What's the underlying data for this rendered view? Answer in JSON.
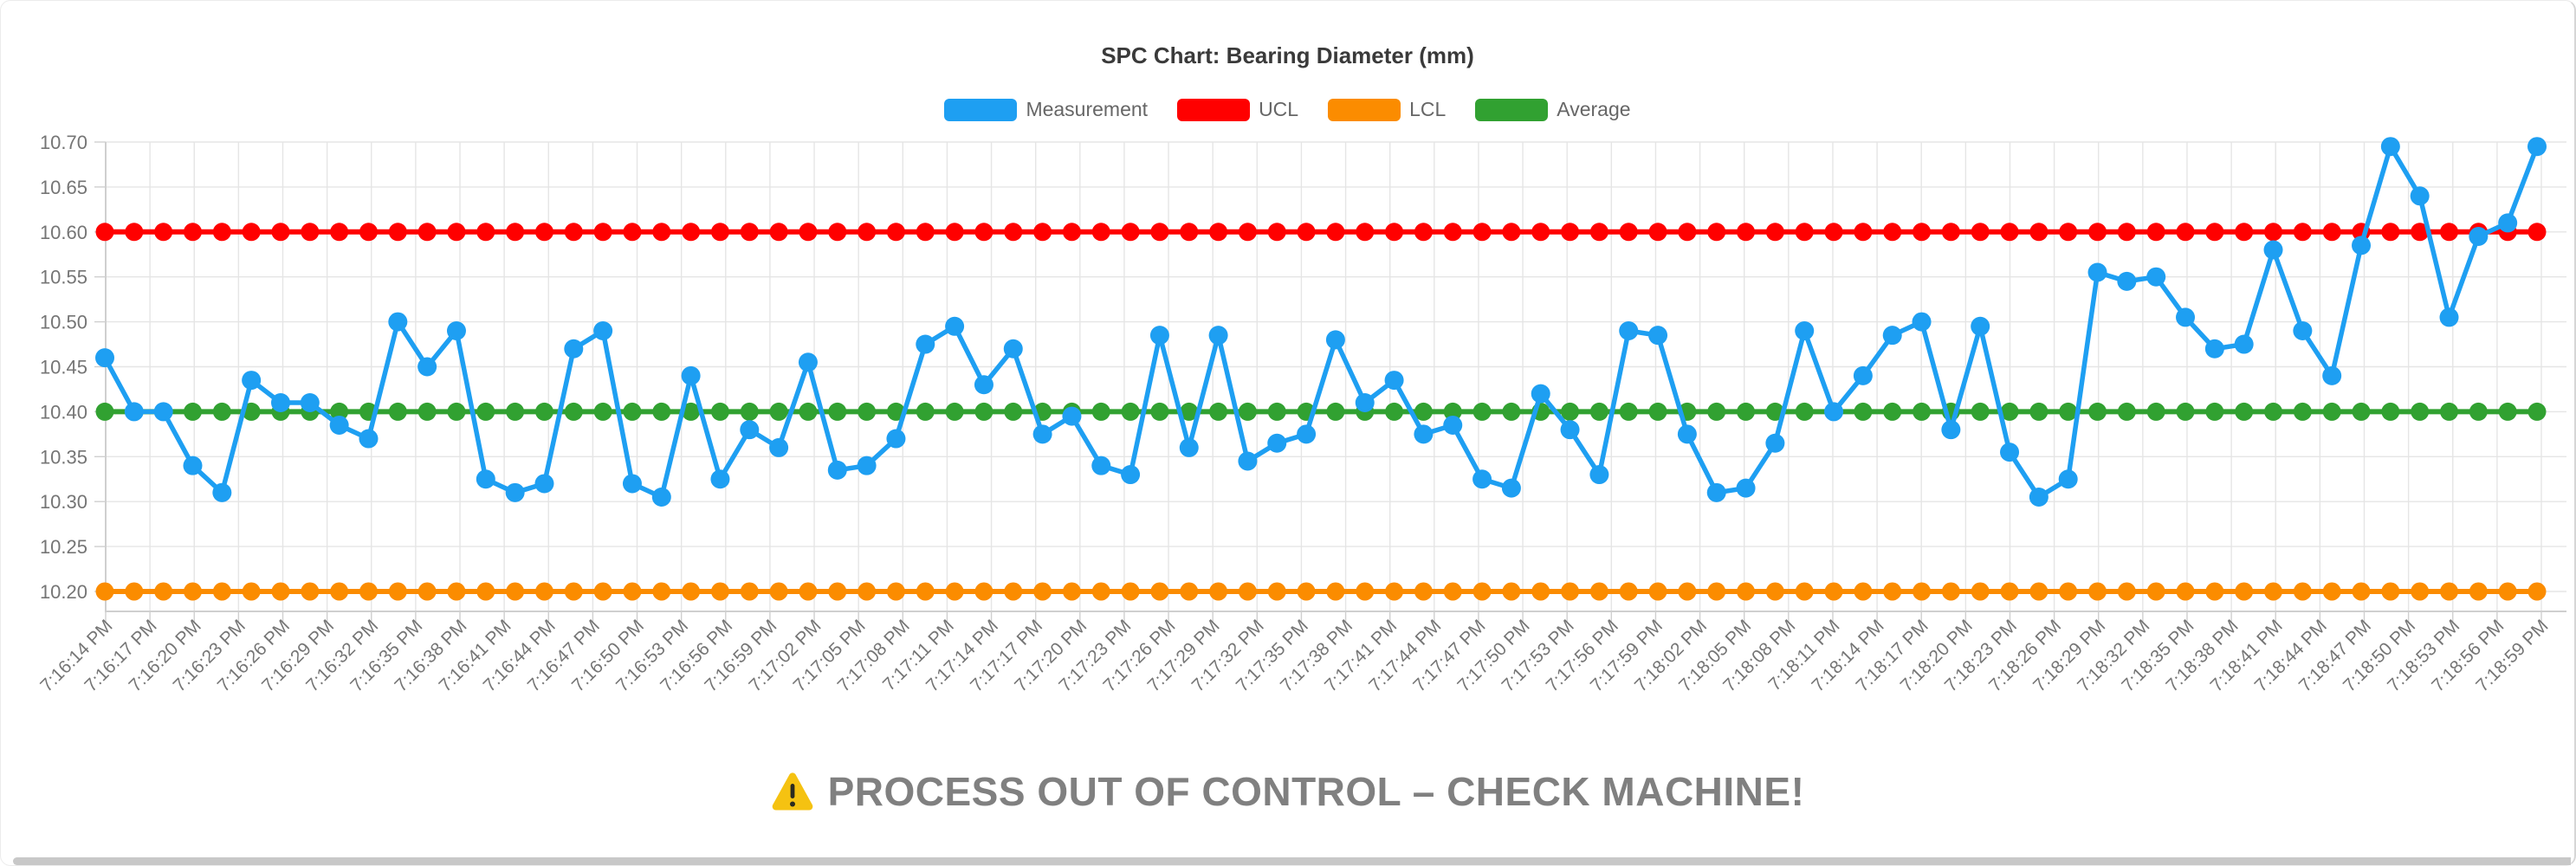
{
  "chart_data": {
    "type": "line",
    "title": "SPC Chart: Bearing Diameter (mm)",
    "legend_position": "top",
    "grid": true,
    "ylim": [
      10.2,
      10.7
    ],
    "y_step": 0.05,
    "y_tick_labels": [
      "10.20",
      "10.25",
      "10.30",
      "10.35",
      "10.40",
      "10.45",
      "10.50",
      "10.55",
      "10.60",
      "10.65",
      "10.70"
    ],
    "x_tick_labels": [
      "7:16:14 PM",
      "7:16:17 PM",
      "7:16:20 PM",
      "7:16:23 PM",
      "7:16:26 PM",
      "7:16:29 PM",
      "7:16:32 PM",
      "7:16:35 PM",
      "7:16:38 PM",
      "7:16:41 PM",
      "7:16:44 PM",
      "7:16:47 PM",
      "7:16:50 PM",
      "7:16:53 PM",
      "7:16:56 PM",
      "7:16:59 PM",
      "7:17:02 PM",
      "7:17:05 PM",
      "7:17:08 PM",
      "7:17:11 PM",
      "7:17:14 PM",
      "7:17:17 PM",
      "7:17:20 PM",
      "7:17:23 PM",
      "7:17:26 PM",
      "7:17:29 PM",
      "7:17:32 PM",
      "7:17:35 PM",
      "7:17:38 PM",
      "7:17:41 PM",
      "7:17:44 PM",
      "7:17:47 PM",
      "7:17:50 PM",
      "7:17:53 PM",
      "7:17:56 PM",
      "7:17:59 PM",
      "7:18:02 PM",
      "7:18:05 PM",
      "7:18:08 PM",
      "7:18:11 PM",
      "7:18:14 PM",
      "7:18:17 PM",
      "7:18:20 PM",
      "7:18:23 PM",
      "7:18:26 PM",
      "7:18:29 PM",
      "7:18:32 PM",
      "7:18:35 PM",
      "7:18:38 PM",
      "7:18:41 PM",
      "7:18:44 PM",
      "7:18:47 PM",
      "7:18:50 PM",
      "7:18:53 PM",
      "7:18:56 PM",
      "7:18:59 PM"
    ],
    "series": [
      {
        "name": "Measurement",
        "color": "#1e9ff2",
        "values": [
          10.46,
          10.4,
          10.4,
          10.34,
          10.31,
          10.435,
          10.41,
          10.41,
          10.385,
          10.37,
          10.5,
          10.45,
          10.49,
          10.325,
          10.31,
          10.32,
          10.47,
          10.49,
          10.32,
          10.305,
          10.44,
          10.325,
          10.38,
          10.36,
          10.455,
          10.335,
          10.34,
          10.37,
          10.475,
          10.495,
          10.43,
          10.47,
          10.375,
          10.395,
          10.34,
          10.33,
          10.485,
          10.36,
          10.485,
          10.345,
          10.365,
          10.375,
          10.48,
          10.41,
          10.435,
          10.375,
          10.385,
          10.325,
          10.315,
          10.42,
          10.38,
          10.33,
          10.49,
          10.485,
          10.375,
          10.31,
          10.315,
          10.365,
          10.49,
          10.4,
          10.44,
          10.485,
          10.5,
          10.38,
          10.495,
          10.355,
          10.305,
          10.325,
          10.555,
          10.545,
          10.55,
          10.505,
          10.47,
          10.475,
          10.58,
          10.49,
          10.44,
          10.585,
          10.695,
          10.64,
          10.505,
          10.595,
          10.61,
          10.695
        ]
      },
      {
        "name": "UCL",
        "color": "#ff0000",
        "constant": 10.6
      },
      {
        "name": "LCL",
        "color": "#fb8c00",
        "constant": 10.2
      },
      {
        "name": "Average",
        "color": "#31a131",
        "constant": 10.4
      }
    ]
  },
  "alert": {
    "icon": "warning-triangle",
    "icon_color": "#f5c211",
    "text": "PROCESS OUT OF CONTROL – CHECK MACHINE!",
    "text_color": "#808080"
  },
  "style": {
    "grid_color": "#e5e5e5",
    "axis_color": "#cfcfcf",
    "tick_label_color": "#757575",
    "title_color": "#3a3a3a",
    "legend_label_color": "#666666"
  }
}
